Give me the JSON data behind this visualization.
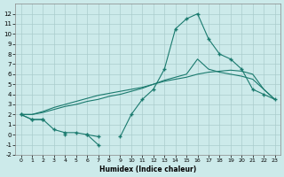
{
  "xlabel": "Humidex (Indice chaleur)",
  "background_color": "#cceaea",
  "grid_color": "#aacccc",
  "line_color": "#1a7a6e",
  "x_values": [
    0,
    1,
    2,
    3,
    4,
    5,
    6,
    7,
    8,
    9,
    10,
    11,
    12,
    13,
    14,
    15,
    16,
    17,
    18,
    19,
    20,
    21,
    22,
    23
  ],
  "y_jagged": [
    2.0,
    1.5,
    1.5,
    0.5,
    0.2,
    0.2,
    0.0,
    -0.2,
    null,
    -0.2,
    2.0,
    3.5,
    4.5,
    6.5,
    10.5,
    11.5,
    12.0,
    9.5,
    8.0,
    7.5,
    6.5,
    4.5,
    4.0,
    3.5
  ],
  "y_low": [
    2.0,
    1.5,
    1.5,
    null,
    0.0,
    null,
    0.0,
    -1.0,
    null,
    null,
    null,
    null,
    null,
    null,
    null,
    null,
    null,
    null,
    null,
    null,
    null,
    null,
    null,
    null
  ],
  "y_smooth1": [
    2.0,
    2.0,
    2.2,
    2.5,
    2.8,
    3.0,
    3.3,
    3.5,
    3.8,
    4.0,
    4.3,
    4.6,
    5.0,
    5.4,
    5.7,
    6.0,
    7.5,
    6.5,
    6.2,
    6.0,
    5.8,
    5.5,
    4.5,
    3.5
  ],
  "y_smooth2": [
    2.0,
    2.0,
    2.3,
    2.7,
    3.0,
    3.3,
    3.6,
    3.9,
    4.1,
    4.3,
    4.5,
    4.7,
    5.0,
    5.3,
    5.5,
    5.7,
    6.0,
    6.2,
    6.3,
    6.4,
    6.3,
    6.0,
    4.5,
    3.5
  ],
  "ylim": [
    -2,
    13
  ],
  "xlim": [
    -0.5,
    23.5
  ],
  "yticks": [
    -2,
    -1,
    0,
    1,
    2,
    3,
    4,
    5,
    6,
    7,
    8,
    9,
    10,
    11,
    12
  ],
  "xticks": [
    0,
    1,
    2,
    3,
    4,
    5,
    6,
    7,
    8,
    9,
    10,
    11,
    12,
    13,
    14,
    15,
    16,
    17,
    18,
    19,
    20,
    21,
    22,
    23
  ]
}
